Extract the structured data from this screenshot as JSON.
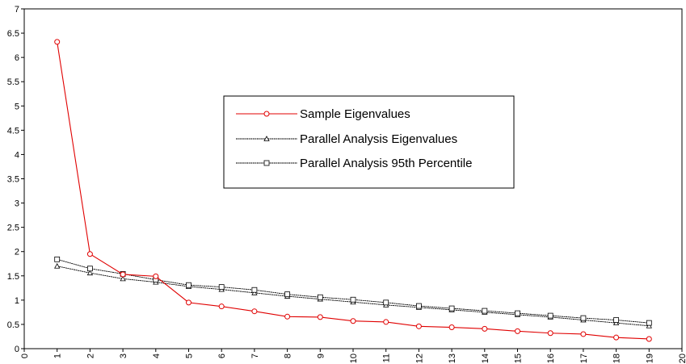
{
  "chart_data": {
    "type": "line",
    "title": "",
    "xlabel": "",
    "ylabel": "",
    "xlim": [
      0,
      20
    ],
    "ylim": [
      0,
      7
    ],
    "x_ticks": [
      "0",
      "1",
      "2",
      "3",
      "4",
      "5",
      "6",
      "7",
      "8",
      "9",
      "10",
      "11",
      "12",
      "13",
      "14",
      "15",
      "16",
      "17",
      "18",
      "19",
      "20"
    ],
    "y_ticks": [
      "0",
      "0.5",
      "1",
      "1.5",
      "2",
      "2.5",
      "3",
      "3.5",
      "4",
      "4.5",
      "5",
      "5.5",
      "6",
      "6.5",
      "7"
    ],
    "grid": false,
    "legend_position": "center",
    "x": [
      1,
      2,
      3,
      4,
      5,
      6,
      7,
      8,
      9,
      10,
      11,
      12,
      13,
      14,
      15,
      16,
      17,
      18,
      19
    ],
    "series": [
      {
        "name": "Sample Eigenvalues",
        "color": "#e00000",
        "marker": "circle",
        "values": [
          6.32,
          1.95,
          1.53,
          1.49,
          0.95,
          0.87,
          0.77,
          0.66,
          0.65,
          0.57,
          0.55,
          0.46,
          0.44,
          0.41,
          0.36,
          0.32,
          0.3,
          0.23,
          0.2
        ]
      },
      {
        "name": "Parallel Analysis Eigenvalues",
        "color": "#000000",
        "marker": "triangle",
        "values": [
          1.7,
          1.56,
          1.44,
          1.37,
          1.28,
          1.22,
          1.15,
          1.08,
          1.02,
          0.96,
          0.9,
          0.85,
          0.8,
          0.75,
          0.7,
          0.65,
          0.59,
          0.53,
          0.47
        ]
      },
      {
        "name": "Parallel Analysis 95th Percentile",
        "color": "#000000",
        "marker": "square",
        "values": [
          1.84,
          1.65,
          1.54,
          1.42,
          1.31,
          1.27,
          1.21,
          1.12,
          1.06,
          1.01,
          0.95,
          0.88,
          0.83,
          0.78,
          0.73,
          0.68,
          0.63,
          0.59,
          0.53
        ]
      }
    ]
  }
}
